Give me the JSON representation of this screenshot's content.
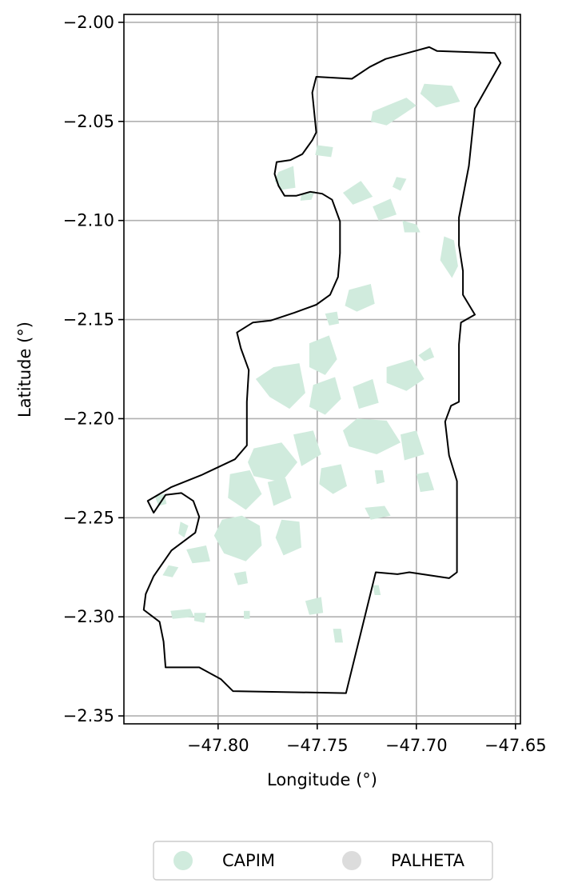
{
  "chart_data": {
    "type": "choropleth-map",
    "xlabel": "Longitude (°)",
    "ylabel": "Latitude (°)",
    "xlim": [
      -47.8475,
      -47.6475
    ],
    "ylim": [
      -2.354,
      -1.996
    ],
    "xticks": [
      -47.8,
      -47.75,
      -47.7,
      -47.65
    ],
    "xtick_labels": [
      "−47.80",
      "−47.75",
      "−47.70",
      "−47.65"
    ],
    "yticks": [
      -2.0,
      -2.05,
      -2.1,
      -2.15,
      -2.2,
      -2.25,
      -2.3,
      -2.35
    ],
    "ytick_labels": [
      "−2.00",
      "−2.05",
      "−2.10",
      "−2.15",
      "−2.20",
      "−2.25",
      "−2.30",
      "−2.35"
    ],
    "grid": true,
    "legend": {
      "placement": "bottom-center",
      "entries": [
        {
          "name": "CAPIM",
          "color": "#d0ebdd"
        },
        {
          "name": "PALHETA",
          "color": "#dcdcdc"
        }
      ]
    },
    "boundary_color": "#000000",
    "boundary": [
      [
        -47.7505,
        -2.0275
      ],
      [
        -47.7325,
        -2.0285
      ],
      [
        -47.7235,
        -2.0225
      ],
      [
        -47.7155,
        -2.0185
      ],
      [
        -47.6935,
        -2.0125
      ],
      [
        -47.6895,
        -2.0145
      ],
      [
        -47.6605,
        -2.0155
      ],
      [
        -47.6575,
        -2.0205
      ],
      [
        -47.6705,
        -2.0435
      ],
      [
        -47.6735,
        -2.0725
      ],
      [
        -47.6785,
        -2.0985
      ],
      [
        -47.6785,
        -2.1125
      ],
      [
        -47.6765,
        -2.1255
      ],
      [
        -47.6765,
        -2.1375
      ],
      [
        -47.6705,
        -2.1475
      ],
      [
        -47.6775,
        -2.1515
      ],
      [
        -47.6785,
        -2.1625
      ],
      [
        -47.6785,
        -2.1915
      ],
      [
        -47.6825,
        -2.1935
      ],
      [
        -47.6855,
        -2.2015
      ],
      [
        -47.6835,
        -2.2185
      ],
      [
        -47.6795,
        -2.2315
      ],
      [
        -47.6795,
        -2.2775
      ],
      [
        -47.6835,
        -2.2805
      ],
      [
        -47.7035,
        -2.2775
      ],
      [
        -47.7095,
        -2.2785
      ],
      [
        -47.7205,
        -2.2775
      ],
      [
        -47.7355,
        -2.3385
      ],
      [
        -47.7925,
        -2.3375
      ],
      [
        -47.7985,
        -2.3315
      ],
      [
        -47.8095,
        -2.3255
      ],
      [
        -47.8175,
        -2.3255
      ],
      [
        -47.8265,
        -2.3255
      ],
      [
        -47.8275,
        -2.3125
      ],
      [
        -47.8295,
        -2.3025
      ],
      [
        -47.8375,
        -2.2965
      ],
      [
        -47.8365,
        -2.2885
      ],
      [
        -47.8325,
        -2.2795
      ],
      [
        -47.8235,
        -2.2665
      ],
      [
        -47.8115,
        -2.2575
      ],
      [
        -47.8095,
        -2.2495
      ],
      [
        -47.8125,
        -2.2415
      ],
      [
        -47.8185,
        -2.2375
      ],
      [
        -47.8265,
        -2.2385
      ],
      [
        -47.8325,
        -2.2475
      ],
      [
        -47.8355,
        -2.2415
      ],
      [
        -47.8235,
        -2.2345
      ],
      [
        -47.8085,
        -2.2285
      ],
      [
        -47.7915,
        -2.2205
      ],
      [
        -47.7855,
        -2.2135
      ],
      [
        -47.7855,
        -2.1915
      ],
      [
        -47.7845,
        -2.1755
      ],
      [
        -47.7885,
        -2.1645
      ],
      [
        -47.7905,
        -2.1565
      ],
      [
        -47.7825,
        -2.1515
      ],
      [
        -47.7735,
        -2.1505
      ],
      [
        -47.7615,
        -2.1465
      ],
      [
        -47.7505,
        -2.1425
      ],
      [
        -47.7435,
        -2.1375
      ],
      [
        -47.7395,
        -2.1285
      ],
      [
        -47.7385,
        -2.1165
      ],
      [
        -47.7385,
        -2.1005
      ],
      [
        -47.7425,
        -2.0895
      ],
      [
        -47.7475,
        -2.0865
      ],
      [
        -47.7535,
        -2.0855
      ],
      [
        -47.7605,
        -2.0875
      ],
      [
        -47.7665,
        -2.0875
      ],
      [
        -47.7695,
        -2.0825
      ],
      [
        -47.7715,
        -2.0765
      ],
      [
        -47.7705,
        -2.0705
      ],
      [
        -47.7635,
        -2.0695
      ],
      [
        -47.7575,
        -2.0665
      ],
      [
        -47.7525,
        -2.0595
      ],
      [
        -47.7505,
        -2.0555
      ],
      [
        -47.7515,
        -2.0455
      ],
      [
        -47.7525,
        -2.0355
      ],
      [
        -47.7505,
        -2.0275
      ]
    ],
    "capim_patches": [
      [
        [
          -47.7695,
          -2.0755
        ],
        [
          -47.762,
          -2.0725
        ],
        [
          -47.761,
          -2.0835
        ],
        [
          -47.768,
          -2.0845
        ],
        [
          -47.7715,
          -2.08
        ]
      ],
      [
        [
          -47.758,
          -2.087
        ],
        [
          -47.751,
          -2.085
        ],
        [
          -47.753,
          -2.0895
        ],
        [
          -47.7585,
          -2.09
        ]
      ],
      [
        [
          -47.75,
          -2.062
        ],
        [
          -47.742,
          -2.063
        ],
        [
          -47.743,
          -2.068
        ],
        [
          -47.751,
          -2.067
        ]
      ],
      [
        [
          -47.722,
          -2.045
        ],
        [
          -47.705,
          -2.038
        ],
        [
          -47.7,
          -2.042
        ],
        [
          -47.715,
          -2.052
        ],
        [
          -47.723,
          -2.05
        ]
      ],
      [
        [
          -47.696,
          -2.031
        ],
        [
          -47.682,
          -2.032
        ],
        [
          -47.678,
          -2.04
        ],
        [
          -47.69,
          -2.043
        ],
        [
          -47.698,
          -2.036
        ]
      ],
      [
        [
          -47.71,
          -2.078
        ],
        [
          -47.705,
          -2.079
        ],
        [
          -47.708,
          -2.085
        ],
        [
          -47.712,
          -2.083
        ]
      ],
      [
        [
          -47.737,
          -2.086
        ],
        [
          -47.728,
          -2.08
        ],
        [
          -47.722,
          -2.088
        ],
        [
          -47.732,
          -2.092
        ]
      ],
      [
        [
          -47.722,
          -2.093
        ],
        [
          -47.713,
          -2.089
        ],
        [
          -47.71,
          -2.097
        ],
        [
          -47.719,
          -2.1
        ]
      ],
      [
        [
          -47.707,
          -2.1
        ],
        [
          -47.7,
          -2.102
        ],
        [
          -47.698,
          -2.106
        ],
        [
          -47.706,
          -2.106
        ]
      ],
      [
        [
          -47.686,
          -2.108
        ],
        [
          -47.681,
          -2.11
        ],
        [
          -47.679,
          -2.123
        ],
        [
          -47.682,
          -2.129
        ],
        [
          -47.688,
          -2.12
        ]
      ],
      [
        [
          -47.734,
          -2.135
        ],
        [
          -47.723,
          -2.132
        ],
        [
          -47.721,
          -2.142
        ],
        [
          -47.73,
          -2.146
        ],
        [
          -47.736,
          -2.143
        ]
      ],
      [
        [
          -47.754,
          -2.162
        ],
        [
          -47.744,
          -2.158
        ],
        [
          -47.74,
          -2.17
        ],
        [
          -47.746,
          -2.178
        ],
        [
          -47.754,
          -2.174
        ]
      ],
      [
        [
          -47.772,
          -2.174
        ],
        [
          -47.759,
          -2.172
        ],
        [
          -47.756,
          -2.187
        ],
        [
          -47.764,
          -2.195
        ],
        [
          -47.774,
          -2.189
        ],
        [
          -47.781,
          -2.18
        ]
      ],
      [
        [
          -47.752,
          -2.183
        ],
        [
          -47.741,
          -2.179
        ],
        [
          -47.738,
          -2.19
        ],
        [
          -47.746,
          -2.198
        ],
        [
          -47.754,
          -2.194
        ]
      ],
      [
        [
          -47.732,
          -2.184
        ],
        [
          -47.722,
          -2.18
        ],
        [
          -47.719,
          -2.192
        ],
        [
          -47.729,
          -2.195
        ]
      ],
      [
        [
          -47.715,
          -2.174
        ],
        [
          -47.702,
          -2.17
        ],
        [
          -47.696,
          -2.18
        ],
        [
          -47.705,
          -2.186
        ],
        [
          -47.715,
          -2.182
        ]
      ],
      [
        [
          -47.73,
          -2.2
        ],
        [
          -47.715,
          -2.201
        ],
        [
          -47.708,
          -2.212
        ],
        [
          -47.72,
          -2.218
        ],
        [
          -47.734,
          -2.214
        ],
        [
          -47.737,
          -2.206
        ]
      ],
      [
        [
          -47.708,
          -2.208
        ],
        [
          -47.7,
          -2.206
        ],
        [
          -47.696,
          -2.218
        ],
        [
          -47.706,
          -2.221
        ]
      ],
      [
        [
          -47.782,
          -2.215
        ],
        [
          -47.768,
          -2.212
        ],
        [
          -47.76,
          -2.222
        ],
        [
          -47.768,
          -2.232
        ],
        [
          -47.782,
          -2.229
        ],
        [
          -47.785,
          -2.222
        ]
      ],
      [
        [
          -47.762,
          -2.208
        ],
        [
          -47.752,
          -2.206
        ],
        [
          -47.748,
          -2.218
        ],
        [
          -47.758,
          -2.224
        ]
      ],
      [
        [
          -47.748,
          -2.225
        ],
        [
          -47.738,
          -2.223
        ],
        [
          -47.735,
          -2.234
        ],
        [
          -47.742,
          -2.238
        ],
        [
          -47.749,
          -2.233
        ]
      ],
      [
        [
          -47.794,
          -2.228
        ],
        [
          -47.784,
          -2.226
        ],
        [
          -47.778,
          -2.238
        ],
        [
          -47.786,
          -2.246
        ],
        [
          -47.795,
          -2.24
        ]
      ],
      [
        [
          -47.798,
          -2.251
        ],
        [
          -47.788,
          -2.249
        ],
        [
          -47.779,
          -2.254
        ],
        [
          -47.778,
          -2.264
        ],
        [
          -47.786,
          -2.272
        ],
        [
          -47.797,
          -2.268
        ],
        [
          -47.802,
          -2.259
        ]
      ],
      [
        [
          -47.775,
          -2.232
        ],
        [
          -47.766,
          -2.23
        ],
        [
          -47.763,
          -2.24
        ],
        [
          -47.772,
          -2.244
        ]
      ],
      [
        [
          -47.768,
          -2.251
        ],
        [
          -47.759,
          -2.252
        ],
        [
          -47.758,
          -2.265
        ],
        [
          -47.767,
          -2.269
        ],
        [
          -47.771,
          -2.26
        ]
      ],
      [
        [
          -47.726,
          -2.245
        ],
        [
          -47.716,
          -2.244
        ],
        [
          -47.713,
          -2.249
        ],
        [
          -47.723,
          -2.251
        ]
      ],
      [
        [
          -47.7,
          -2.228
        ],
        [
          -47.694,
          -2.227
        ],
        [
          -47.691,
          -2.236
        ],
        [
          -47.698,
          -2.237
        ]
      ],
      [
        [
          -47.721,
          -2.226
        ],
        [
          -47.717,
          -2.226
        ],
        [
          -47.716,
          -2.232
        ],
        [
          -47.72,
          -2.233
        ]
      ],
      [
        [
          -47.819,
          -2.252
        ],
        [
          -47.815,
          -2.254
        ],
        [
          -47.817,
          -2.26
        ],
        [
          -47.82,
          -2.258
        ]
      ],
      [
        [
          -47.816,
          -2.266
        ],
        [
          -47.806,
          -2.264
        ],
        [
          -47.804,
          -2.272
        ],
        [
          -47.813,
          -2.273
        ]
      ],
      [
        [
          -47.825,
          -2.274
        ],
        [
          -47.82,
          -2.275
        ],
        [
          -47.823,
          -2.28
        ],
        [
          -47.828,
          -2.279
        ]
      ],
      [
        [
          -47.832,
          -2.239
        ],
        [
          -47.827,
          -2.238
        ],
        [
          -47.826,
          -2.243
        ],
        [
          -47.83,
          -2.244
        ]
      ],
      [
        [
          -47.792,
          -2.278
        ],
        [
          -47.786,
          -2.277
        ],
        [
          -47.785,
          -2.283
        ],
        [
          -47.79,
          -2.284
        ]
      ],
      [
        [
          -47.756,
          -2.292
        ],
        [
          -47.748,
          -2.29
        ],
        [
          -47.747,
          -2.298
        ],
        [
          -47.754,
          -2.299
        ]
      ],
      [
        [
          -47.722,
          -2.284
        ],
        [
          -47.719,
          -2.284
        ],
        [
          -47.718,
          -2.289
        ],
        [
          -47.721,
          -2.289
        ]
      ],
      [
        [
          -47.742,
          -2.306
        ],
        [
          -47.738,
          -2.306
        ],
        [
          -47.737,
          -2.313
        ],
        [
          -47.741,
          -2.313
        ]
      ],
      [
        [
          -47.824,
          -2.297
        ],
        [
          -47.814,
          -2.296
        ],
        [
          -47.812,
          -2.3
        ],
        [
          -47.823,
          -2.301
        ]
      ],
      [
        [
          -47.812,
          -2.298
        ],
        [
          -47.806,
          -2.298
        ],
        [
          -47.807,
          -2.303
        ],
        [
          -47.812,
          -2.302
        ]
      ],
      [
        [
          -47.787,
          -2.297
        ],
        [
          -47.784,
          -2.297
        ],
        [
          -47.784,
          -2.301
        ],
        [
          -47.787,
          -2.301
        ]
      ],
      [
        [
          -47.699,
          -2.168
        ],
        [
          -47.693,
          -2.164
        ],
        [
          -47.691,
          -2.169
        ],
        [
          -47.696,
          -2.171
        ]
      ],
      [
        [
          -47.746,
          -2.147
        ],
        [
          -47.74,
          -2.146
        ],
        [
          -47.739,
          -2.152
        ],
        [
          -47.744,
          -2.153
        ]
      ]
    ]
  }
}
